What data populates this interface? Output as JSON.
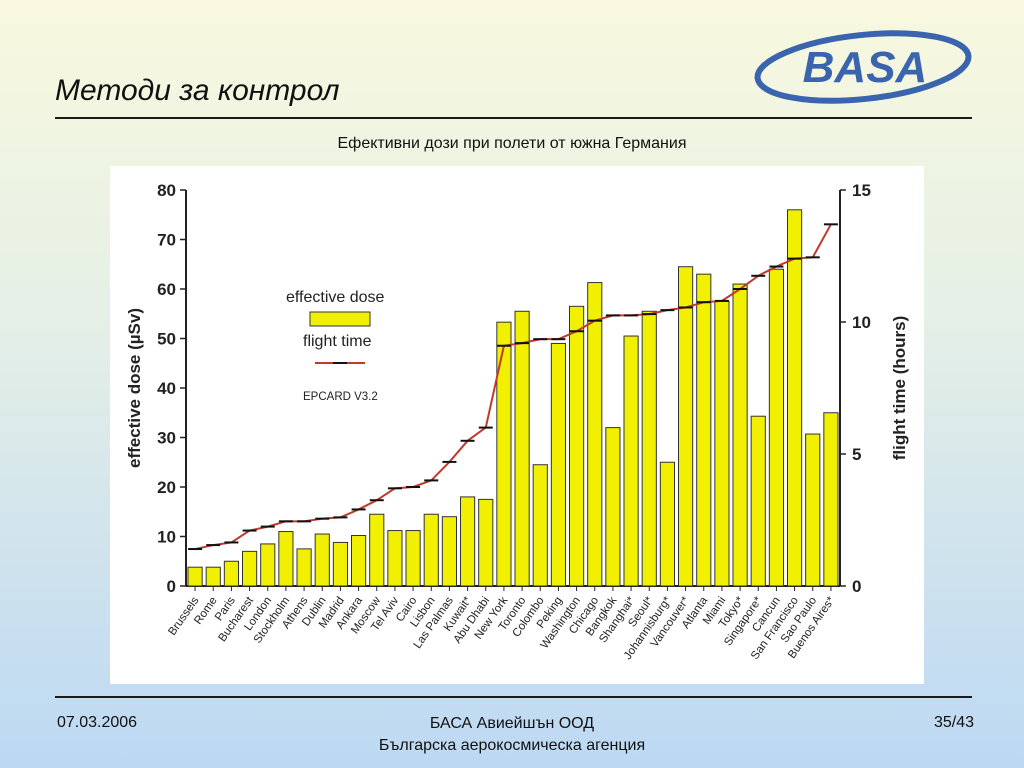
{
  "slide": {
    "title": "Методи за контрол",
    "date": "07.03.2006",
    "company_line1": "БАСА Авиейшън ООД",
    "company_line2": "Българска аерокосмическа агенция",
    "page": "35/43"
  },
  "logo": {
    "text": "BASA",
    "color": "#3a64ad"
  },
  "chart_data": {
    "type": "bar",
    "title": "Ефективни дози при полети от южна Германия",
    "ylabel": "effective dose (µSv)",
    "y2label": "flight time (hours)",
    "ylim": [
      0,
      80
    ],
    "y2lim": [
      0,
      15
    ],
    "yticks": [
      0,
      10,
      20,
      30,
      40,
      50,
      60,
      70,
      80
    ],
    "y2ticks": [
      0,
      5,
      10,
      15
    ],
    "legend": {
      "position": "upper-left",
      "dose_label": "effective dose",
      "time_label": "flight time",
      "model": "EPCARD V3.2"
    },
    "colors": {
      "bar": "#f0f000",
      "line": "#c0392b"
    },
    "categories": [
      "Brussels",
      "Rome",
      "Paris",
      "Bucharest",
      "London",
      "Stockholm",
      "Athens",
      "Dublin",
      "Madrid",
      "Ankara",
      "Moscow",
      "Tel Aviv",
      "Cairo",
      "Lisbon",
      "Las Palmas",
      "Kuwait*",
      "Abu Dhabi",
      "New York",
      "Toronto",
      "Colombo",
      "Peking",
      "Washington",
      "Chicago",
      "Bangkok",
      "Shanghai*",
      "Seoul*",
      "Johannisburg*",
      "Vancouver*",
      "Atlanta",
      "Miami",
      "Tokyo*",
      "Singapore*",
      "Cancun",
      "San Francisco",
      "Sao Paulo",
      "Buenos Aires*"
    ],
    "series": [
      {
        "name": "effective dose",
        "type": "bar",
        "axis": "left",
        "values": [
          3.8,
          3.8,
          5,
          7,
          8.5,
          11,
          7.5,
          10.5,
          8.8,
          10.2,
          14.5,
          11.2,
          11.2,
          14.5,
          14,
          18,
          17.5,
          53.3,
          55.5,
          24.5,
          49,
          56.5,
          61.3,
          32,
          50.5,
          55.5,
          25,
          64.5,
          63,
          57.5,
          61,
          34.3,
          64,
          76,
          30.7,
          35
        ]
      },
      {
        "name": "flight time",
        "type": "line",
        "axis": "right",
        "values": [
          1.4,
          1.55,
          1.65,
          2.1,
          2.25,
          2.45,
          2.45,
          2.55,
          2.6,
          2.9,
          3.25,
          3.7,
          3.75,
          4.0,
          4.7,
          5.5,
          6.0,
          9.1,
          9.2,
          9.35,
          9.35,
          9.65,
          10.05,
          10.25,
          10.25,
          10.3,
          10.45,
          10.55,
          10.75,
          10.8,
          11.25,
          11.75,
          12.1,
          12.4,
          12.45,
          13.7
        ]
      }
    ]
  }
}
